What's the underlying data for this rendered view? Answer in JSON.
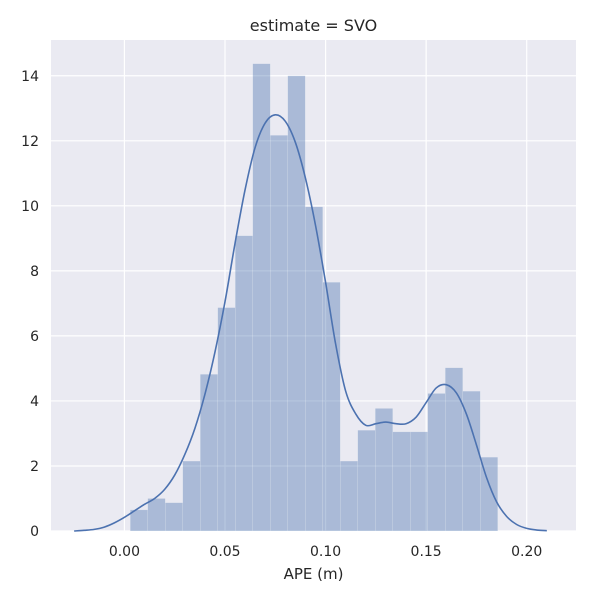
{
  "chart_data": {
    "type": "bar",
    "title": "estimate = SVO",
    "xlabel": "APE (m)",
    "ylabel": "",
    "xlim": [
      -0.0365,
      0.2245
    ],
    "ylim": [
      0,
      15.1
    ],
    "x_ticks": [
      "0.00",
      "0.05",
      "0.10",
      "0.15",
      "0.20"
    ],
    "y_ticks": [
      "0",
      "2",
      "4",
      "6",
      "8",
      "10",
      "12",
      "14"
    ],
    "grid": true,
    "colors": {
      "background": "#eaeaf2",
      "grid": "#ffffff",
      "bars": "#4c72b0",
      "kde": "#4c72b0"
    },
    "histogram": {
      "bin_edges": [
        0.0029,
        0.0116,
        0.0203,
        0.029,
        0.0377,
        0.0464,
        0.0551,
        0.0638,
        0.0725,
        0.0812,
        0.0899,
        0.0986,
        0.1073,
        0.116,
        0.1247,
        0.1334,
        0.1421,
        0.1508,
        0.1595,
        0.1682,
        0.1769,
        0.1856
      ],
      "values": [
        0.65,
        1.0,
        0.87,
        2.15,
        4.82,
        6.87,
        9.08,
        14.37,
        12.17,
        14.0,
        9.97,
        7.65,
        2.15,
        3.1,
        3.77,
        3.05,
        3.05,
        4.23,
        5.02,
        4.3,
        2.27
      ]
    },
    "kde": {
      "x": [
        -0.025,
        -0.02,
        -0.015,
        -0.01,
        -0.005,
        0.0,
        0.005,
        0.01,
        0.015,
        0.02,
        0.025,
        0.03,
        0.035,
        0.04,
        0.045,
        0.05,
        0.055,
        0.06,
        0.065,
        0.07,
        0.075,
        0.08,
        0.085,
        0.09,
        0.095,
        0.1,
        0.105,
        0.11,
        0.115,
        0.12,
        0.125,
        0.13,
        0.135,
        0.14,
        0.145,
        0.15,
        0.155,
        0.16,
        0.165,
        0.17,
        0.175,
        0.18,
        0.185,
        0.19,
        0.195,
        0.2,
        0.205,
        0.21
      ],
      "y": [
        0.0,
        0.02,
        0.05,
        0.12,
        0.25,
        0.42,
        0.62,
        0.82,
        1.0,
        1.28,
        1.72,
        2.35,
        3.15,
        4.2,
        5.5,
        7.05,
        8.85,
        10.5,
        11.8,
        12.55,
        12.8,
        12.6,
        11.95,
        10.85,
        9.4,
        7.65,
        5.75,
        4.3,
        3.6,
        3.25,
        3.3,
        3.35,
        3.3,
        3.3,
        3.5,
        3.95,
        4.4,
        4.5,
        4.25,
        3.6,
        2.65,
        1.65,
        0.9,
        0.45,
        0.2,
        0.08,
        0.03,
        0.01
      ]
    }
  }
}
